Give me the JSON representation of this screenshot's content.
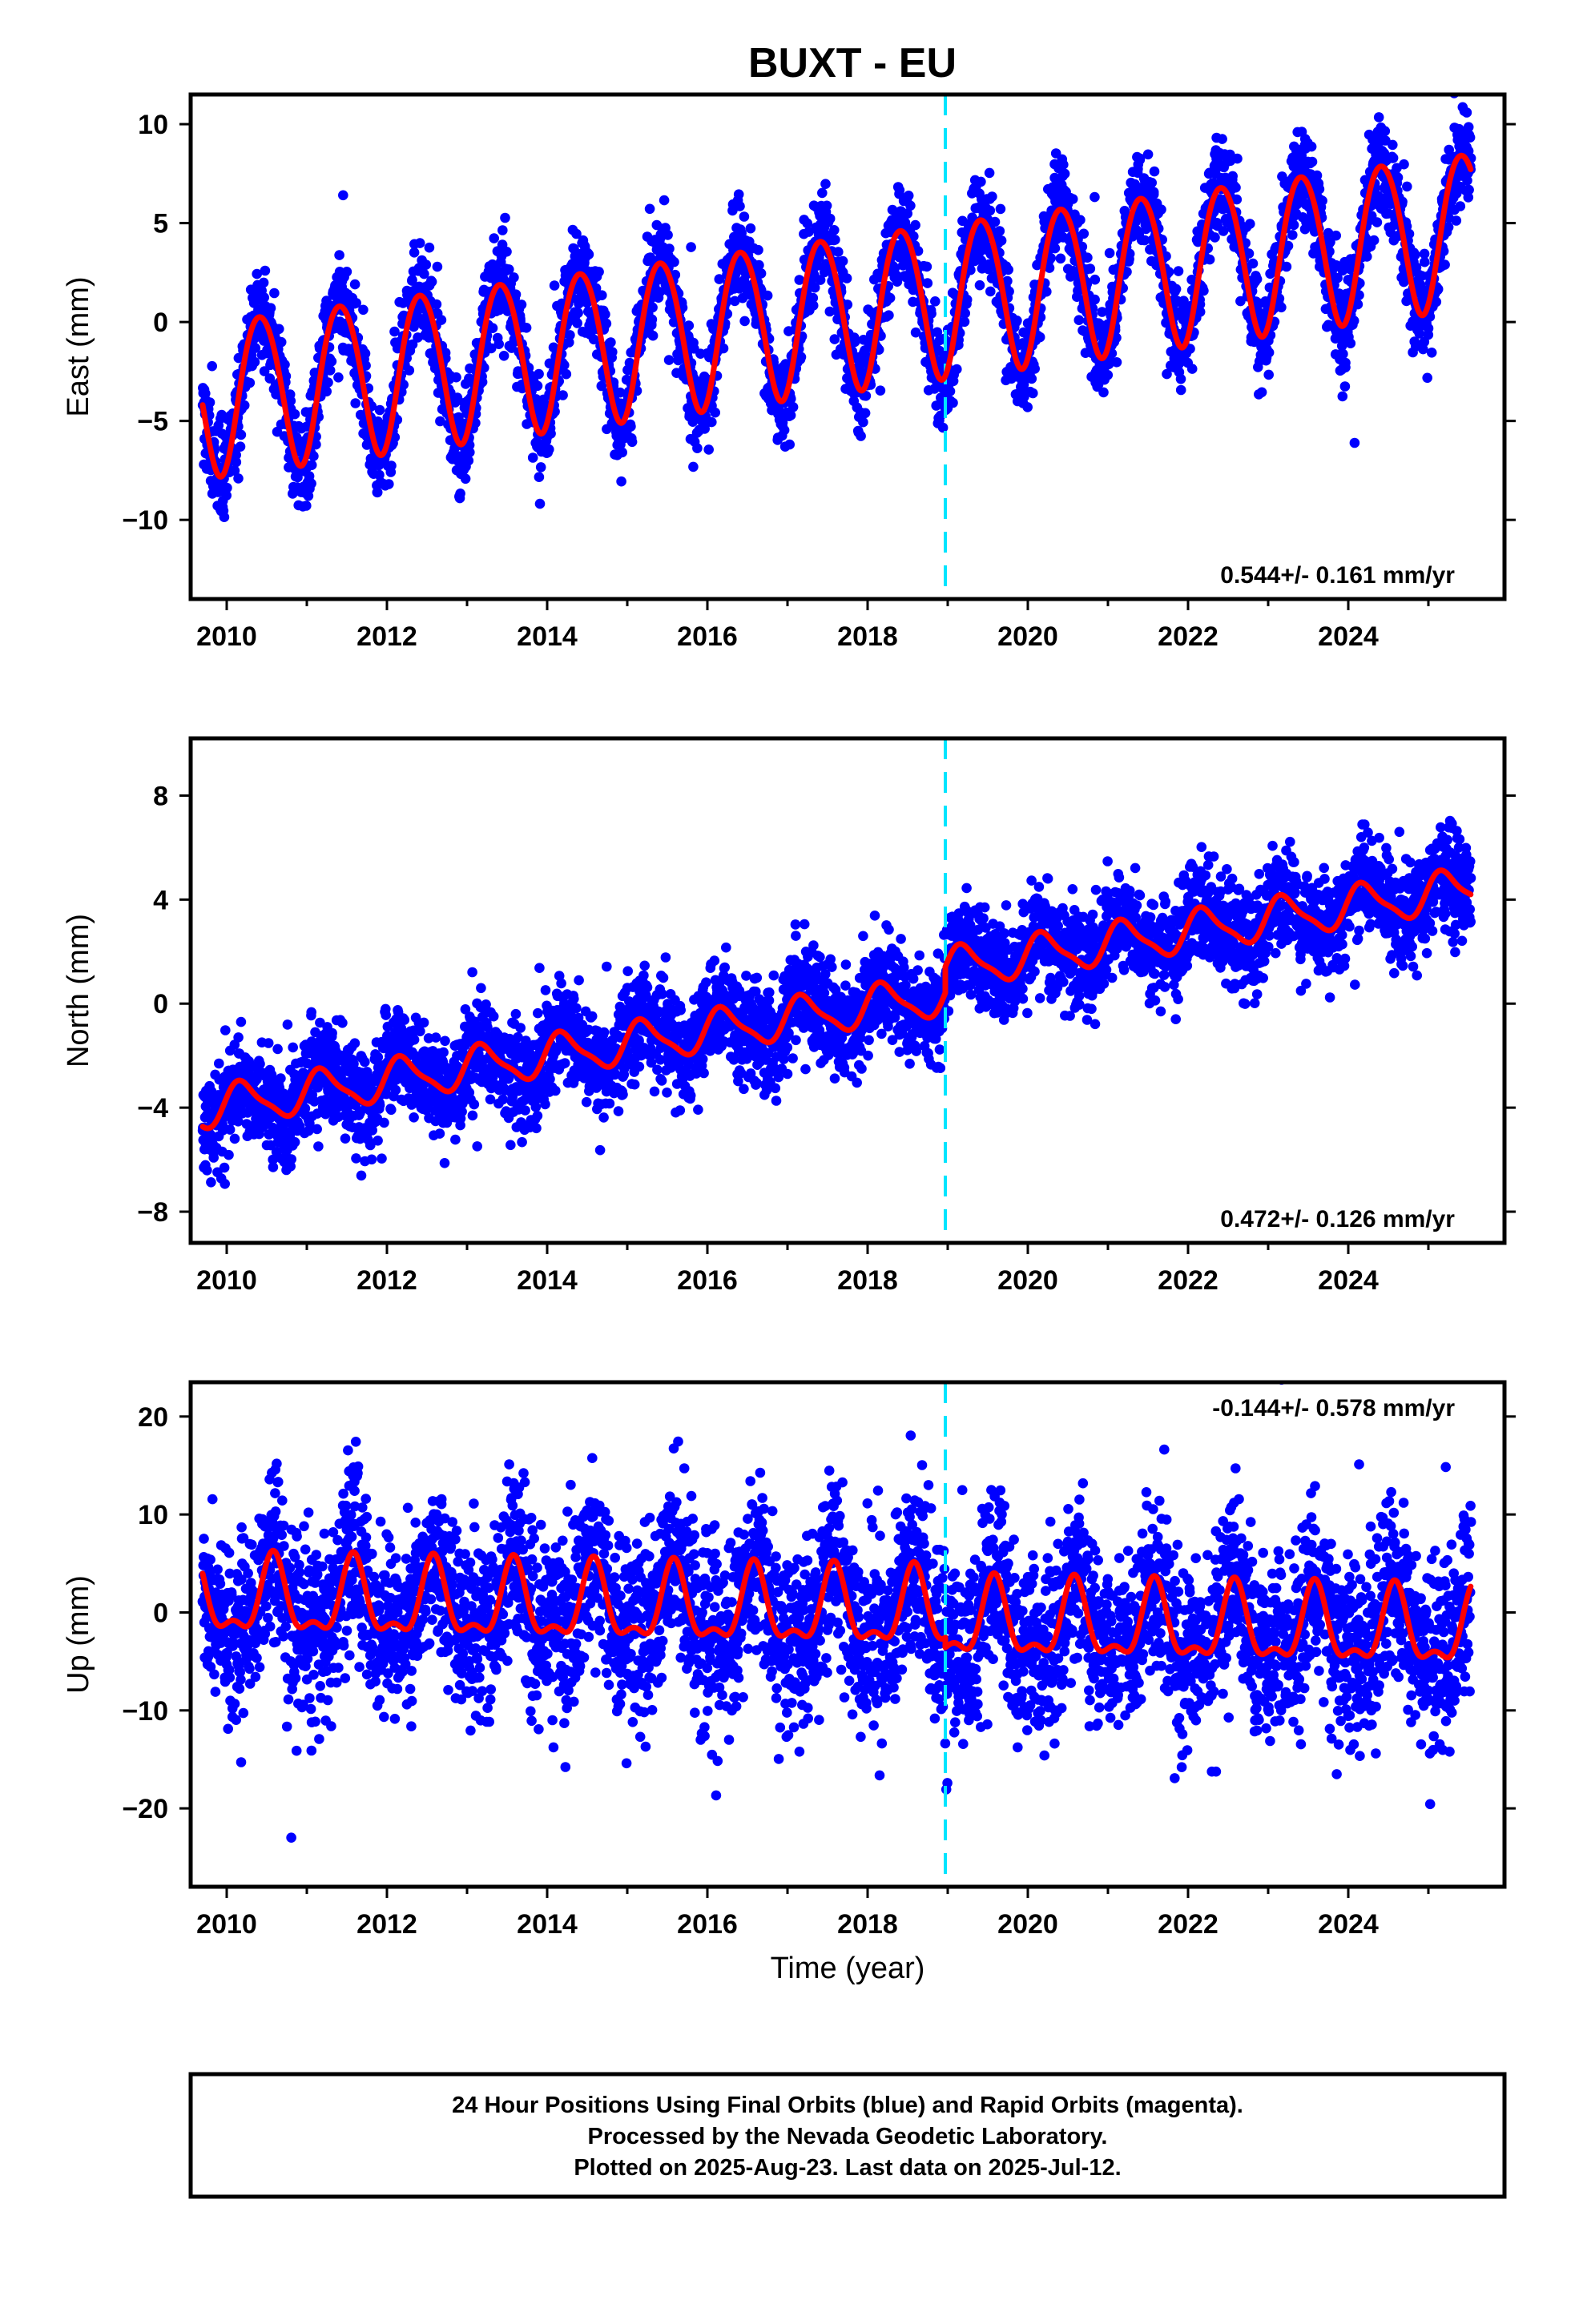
{
  "title": "BUXT - EU",
  "footer": {
    "lines": [
      "24 Hour Positions Using Final Orbits (blue) and Rapid Orbits (magenta).",
      "Processed by the Nevada Geodetic Laboratory.",
      "Plotted on 2025-Aug-23. Last data on 2025-Jul-12."
    ]
  },
  "colors": {
    "points": "#0000ff",
    "model": "#ff0000",
    "discontinuity": "#00e5ff",
    "frame": "#000000"
  },
  "chart_data": [
    {
      "type": "scatter",
      "component": "east",
      "ylabel": "East (mm)",
      "xlabel": "",
      "xlim": [
        2009.55,
        2025.95
      ],
      "ylim": [
        -14,
        11.5
      ],
      "xticks": [
        2010,
        2012,
        2014,
        2016,
        2018,
        2020,
        2022,
        2024
      ],
      "xtick_labels": [
        "2010",
        "2012",
        "2014",
        "2016",
        "2018",
        "2020",
        "2022",
        "2024"
      ],
      "yticks": [
        -10,
        -5,
        0,
        5,
        10
      ],
      "ytick_labels": [
        "−10",
        "−5",
        "0",
        "5",
        "10"
      ],
      "rate_text": "0.544+/- 0.161 mm/yr",
      "rate_position": "bottom-right",
      "discontinuity_x": 2018.97,
      "data_start": 2009.7,
      "data_end": 2025.53,
      "model": {
        "intercept_2010": -3.6,
        "rate": 0.544,
        "annual_amp": 3.9,
        "annual_peak_frac": 0.42,
        "semiannual_amp": 0.3,
        "semiannual_peak_frac": 0.2,
        "offset_at_discontinuity": 0.0
      },
      "scatter_sigma": 1.2,
      "series": [
        {
          "role": "points",
          "color": "#0000ff"
        },
        {
          "role": "model",
          "color": "#ff0000"
        }
      ]
    },
    {
      "type": "scatter",
      "component": "north",
      "ylabel": "North (mm)",
      "xlabel": "",
      "xlim": [
        2009.55,
        2025.95
      ],
      "ylim": [
        -9.2,
        10.2
      ],
      "xticks": [
        2010,
        2012,
        2014,
        2016,
        2018,
        2020,
        2022,
        2024
      ],
      "xtick_labels": [
        "2010",
        "2012",
        "2014",
        "2016",
        "2018",
        "2020",
        "2022",
        "2024"
      ],
      "yticks": [
        -8,
        -4,
        0,
        4,
        8
      ],
      "ytick_labels": [
        "−8",
        "−4",
        "0",
        "4",
        "8"
      ],
      "rate_text": "0.472+/- 0.126 mm/yr",
      "rate_position": "bottom-right",
      "discontinuity_x": 2018.97,
      "data_start": 2009.7,
      "data_end": 2025.53,
      "model": {
        "intercept_2010": -3.9,
        "rate": 0.472,
        "annual_amp": 0.75,
        "annual_peak_frac": 0.2,
        "semiannual_amp": 0.2,
        "semiannual_peak_frac": 0.1,
        "offset_at_discontinuity": 1.0
      },
      "scatter_sigma": 0.95,
      "series": [
        {
          "role": "points",
          "color": "#0000ff"
        },
        {
          "role": "model",
          "color": "#ff0000"
        }
      ]
    },
    {
      "type": "scatter",
      "component": "up",
      "ylabel": "Up (mm)",
      "xlabel": "Time (year)",
      "xlim": [
        2009.55,
        2025.95
      ],
      "ylim": [
        -28,
        23.5
      ],
      "xticks": [
        2010,
        2012,
        2014,
        2016,
        2018,
        2020,
        2022,
        2024
      ],
      "xtick_labels": [
        "2010",
        "2012",
        "2014",
        "2016",
        "2018",
        "2020",
        "2022",
        "2024"
      ],
      "yticks": [
        -20,
        -10,
        0,
        10,
        20
      ],
      "ytick_labels": [
        "−20",
        "−10",
        "0",
        "10",
        "20"
      ],
      "rate_text": "-0.144+/- 0.578 mm/yr",
      "rate_position": "top-right",
      "discontinuity_x": 2018.97,
      "data_start": 2009.7,
      "data_end": 2025.53,
      "model": {
        "intercept_2010": 1.2,
        "rate": -0.144,
        "annual_amp": 3.6,
        "annual_peak_frac": 0.58,
        "semiannual_amp": 1.6,
        "semiannual_peak_frac": 0.08,
        "offset_at_discontinuity": -1.0
      },
      "scatter_sigma": 4.6,
      "series": [
        {
          "role": "points",
          "color": "#0000ff"
        },
        {
          "role": "model",
          "color": "#ff0000"
        }
      ]
    }
  ]
}
